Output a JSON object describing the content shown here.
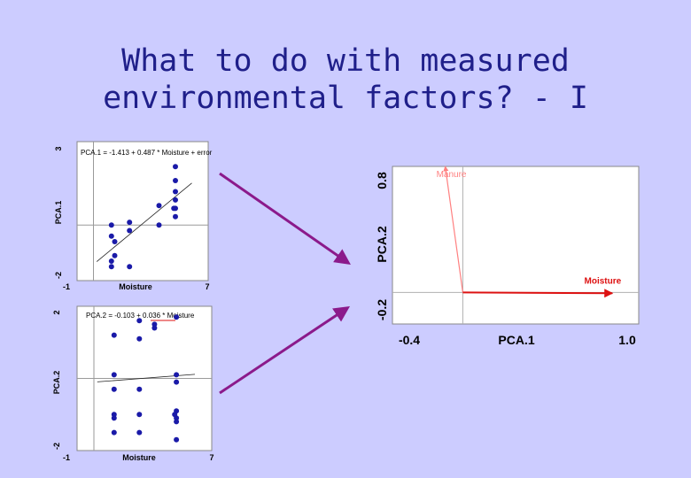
{
  "title": {
    "line1": "What to do with measured",
    "line2": "environmental factors? - I"
  },
  "colors": {
    "background": "#ccccff",
    "title": "#1f1f8a",
    "points": "#1a1aa8",
    "arrow": "#8b1a8b",
    "moisture_vector": "#dd1111",
    "manure_vector": "#ff8080"
  },
  "chart_data": [
    {
      "type": "scatter",
      "xlabel": "Moisture",
      "ylabel": "PCA.1",
      "xlim": [
        -1,
        7
      ],
      "ylim": [
        -2,
        3
      ],
      "xticks": [
        "-1",
        "7"
      ],
      "yticks": [
        "-2",
        "3"
      ],
      "annotation": "PCA.1 = -1.413 + 0.487 * Moisture + error",
      "fit": {
        "intercept": -1.413,
        "slope": 0.487
      },
      "points": [
        [
          1.1,
          0.0
        ],
        [
          1.1,
          -0.4
        ],
        [
          1.1,
          -1.3
        ],
        [
          1.1,
          -1.5
        ],
        [
          1.3,
          -0.6
        ],
        [
          1.3,
          -1.1
        ],
        [
          2.2,
          0.1
        ],
        [
          2.2,
          -0.2
        ],
        [
          2.2,
          -1.5
        ],
        [
          4.0,
          0.7
        ],
        [
          4.0,
          0.0
        ],
        [
          5.0,
          2.1
        ],
        [
          5.0,
          1.6
        ],
        [
          5.0,
          1.2
        ],
        [
          5.0,
          0.9
        ],
        [
          5.0,
          0.6
        ],
        [
          5.0,
          0.3
        ],
        [
          4.9,
          0.6
        ]
      ],
      "grid": false
    },
    {
      "type": "scatter",
      "xlabel": "Moisture",
      "ylabel": "PCA.2",
      "xlim": [
        -1,
        7
      ],
      "ylim": [
        -2,
        2
      ],
      "xticks": [
        "-1",
        "7"
      ],
      "yticks": [
        "-2",
        "2"
      ],
      "annotation": "PCA.2 = -0.103 + 0.036 * Moisture",
      "fit": {
        "intercept": -0.103,
        "slope": 0.036
      },
      "points": [
        [
          1.2,
          1.2
        ],
        [
          1.2,
          0.1
        ],
        [
          1.2,
          -0.3
        ],
        [
          1.2,
          -1.0
        ],
        [
          1.2,
          -1.1
        ],
        [
          1.2,
          -1.5
        ],
        [
          2.7,
          1.6
        ],
        [
          2.7,
          1.1
        ],
        [
          2.7,
          -0.3
        ],
        [
          2.7,
          -1.0
        ],
        [
          2.7,
          -1.5
        ],
        [
          3.6,
          1.5
        ],
        [
          3.6,
          1.4
        ],
        [
          4.9,
          1.7
        ],
        [
          4.9,
          0.1
        ],
        [
          4.9,
          -0.1
        ],
        [
          4.9,
          -0.9
        ],
        [
          4.9,
          -1.1
        ],
        [
          4.9,
          -1.2
        ],
        [
          4.9,
          -1.7
        ],
        [
          4.8,
          -1.0
        ]
      ],
      "grid": false
    },
    {
      "type": "biplot",
      "xlabel": "PCA.1",
      "ylabel": "PCA.2",
      "xlim": [
        -0.4,
        1.0
      ],
      "ylim": [
        -0.2,
        0.8
      ],
      "xticks": [
        "-0.4",
        "1.0"
      ],
      "yticks": [
        "-0.2",
        "0.8"
      ],
      "vectors": [
        {
          "label": "Manure",
          "x": -0.1,
          "y": 0.8
        },
        {
          "label": "Moisture",
          "x": 0.85,
          "y": -0.005
        }
      ],
      "grid": false
    }
  ]
}
